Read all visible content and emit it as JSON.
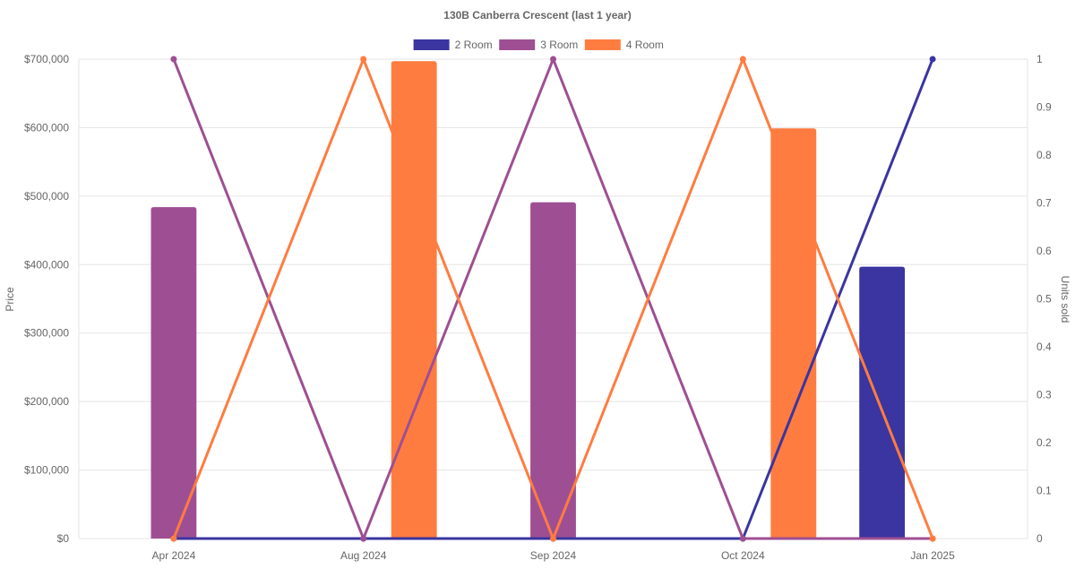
{
  "chart_data": {
    "type": "bar",
    "title": "130B Canberra Crescent (last 1 year)",
    "categories": [
      "Apr 2024",
      "Aug 2024",
      "Sep 2024",
      "Oct 2024",
      "Jan 2025"
    ],
    "ylabel": "Price",
    "y2label": "Units sold",
    "ylim": [
      0,
      700000
    ],
    "y2lim": [
      0,
      1
    ],
    "yticks": [
      "$0",
      "$100,000",
      "$200,000",
      "$300,000",
      "$400,000",
      "$500,000",
      "$600,000",
      "$700,000"
    ],
    "y2ticks": [
      "0",
      "0.1",
      "0.2",
      "0.3",
      "0.4",
      "0.5",
      "0.6",
      "0.7",
      "0.8",
      "0.9",
      "1"
    ],
    "grid": true,
    "legend_position": "top-center",
    "series": [
      {
        "name": "2 Room",
        "color": "#3a35a0",
        "price": [
          null,
          null,
          null,
          null,
          397000
        ],
        "units_sold": [
          0,
          0,
          0,
          0,
          1
        ]
      },
      {
        "name": "3 Room",
        "color": "#9e4f93",
        "price": [
          484000,
          null,
          491000,
          null,
          null
        ],
        "units_sold": [
          1,
          0,
          1,
          0,
          0
        ]
      },
      {
        "name": "4 Room",
        "color": "#ff7c40",
        "price": [
          null,
          697000,
          null,
          599000,
          null
        ],
        "units_sold": [
          0,
          1,
          0,
          1,
          0
        ]
      }
    ]
  }
}
